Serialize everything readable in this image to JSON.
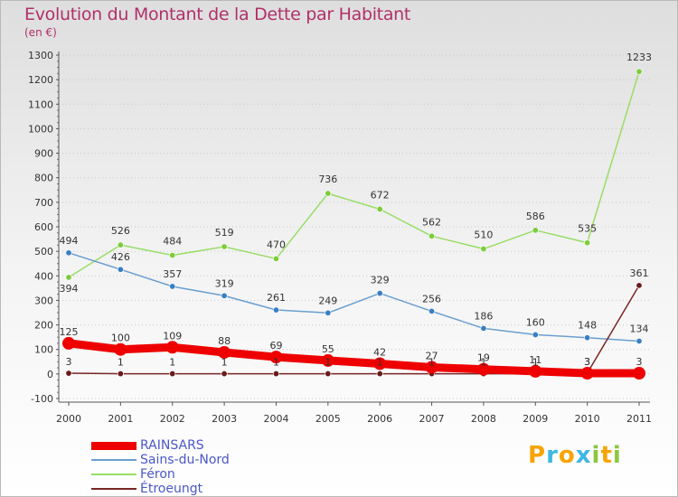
{
  "title": "Evolution du Montant de la Dette par Habitant",
  "subtitle": "(en €)",
  "logo": {
    "text": "Proxiti",
    "letters": [
      {
        "ch": "P",
        "color": "#f7a400"
      },
      {
        "ch": "r",
        "color": "#3db7e4"
      },
      {
        "ch": "o",
        "color": "#f7a400"
      },
      {
        "ch": "x",
        "color": "#3db7e4"
      },
      {
        "ch": "i",
        "color": "#8dc63f"
      },
      {
        "ch": "t",
        "color": "#f7a400"
      },
      {
        "ch": "i",
        "color": "#8dc63f"
      }
    ]
  },
  "chart_data": {
    "type": "line",
    "title": "Evolution du Montant de la Dette par Habitant",
    "subtitle": "(en €)",
    "x": [
      "2000",
      "2001",
      "2002",
      "2003",
      "2004",
      "2005",
      "2006",
      "2007",
      "2008",
      "2009",
      "2010",
      "2011"
    ],
    "ylim": [
      -100,
      1300
    ],
    "yticks": [
      -100,
      0,
      100,
      200,
      300,
      400,
      500,
      600,
      700,
      800,
      900,
      1000,
      1100,
      1200,
      1300
    ],
    "legend_position": "bottom-left",
    "series": [
      {
        "name": "RAINSARS",
        "color": "#ee0000",
        "values": [
          125,
          100,
          109,
          88,
          69,
          55,
          42,
          27,
          19,
          11,
          3,
          3
        ],
        "labels": [
          "125",
          "100",
          "109",
          "88",
          "69",
          "55",
          "42",
          "27",
          "19",
          "11",
          "3",
          "3"
        ],
        "style": "thick"
      },
      {
        "name": "Sains-du-Nord",
        "color": "#6a9fcf",
        "marker": "#3a7fc4",
        "values": [
          494,
          426,
          357,
          319,
          261,
          249,
          329,
          256,
          186,
          160,
          148,
          134
        ],
        "labels": [
          "494",
          "426",
          "357",
          "319",
          "261",
          "249",
          "329",
          "256",
          "186",
          "160",
          "148",
          "134"
        ]
      },
      {
        "name": "Féron",
        "color": "#99dd66",
        "marker": "#7ccc3c",
        "values": [
          394,
          526,
          484,
          519,
          470,
          736,
          672,
          562,
          510,
          586,
          535,
          1233
        ],
        "labels": [
          "394",
          "526",
          "484",
          "519",
          "470",
          "736",
          "672",
          "562",
          "510",
          "586",
          "535",
          "1233"
        ]
      },
      {
        "name": "Étroeungt",
        "color": "#7a2525",
        "marker": "#6a1a1a",
        "values": [
          3,
          1,
          1,
          1,
          1,
          1,
          1,
          1,
          1,
          1,
          3,
          361
        ],
        "labels": [
          "3",
          "1",
          "1",
          "1",
          "1",
          "1",
          "1",
          "1",
          "1",
          "1",
          "3",
          "361"
        ]
      }
    ]
  }
}
